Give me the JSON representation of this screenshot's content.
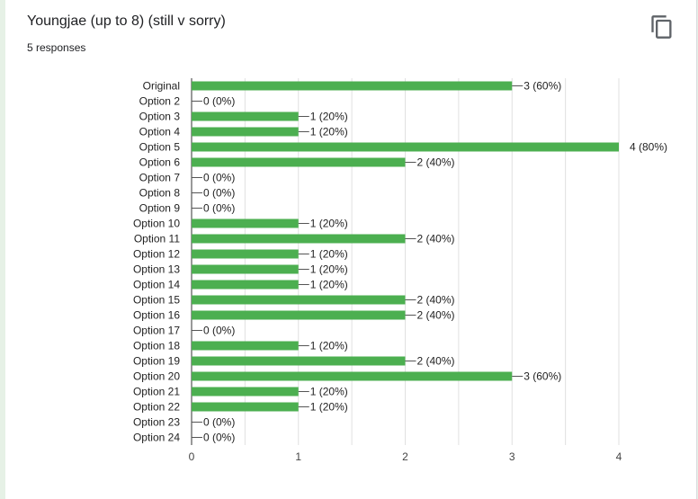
{
  "question": {
    "title": "Youngjae (up to 8) (still v sorry)",
    "responses": "5 responses"
  },
  "icons": {
    "copy": "copy-icon"
  },
  "colors": {
    "bar": "#4caf50",
    "grid": "#e0e0e0",
    "axis": "#333333"
  },
  "chart_data": {
    "type": "bar",
    "orientation": "horizontal",
    "categories": [
      "Original",
      "Option 2",
      "Option 3",
      "Option 4",
      "Option 5",
      "Option 6",
      "Option 7",
      "Option 8",
      "Option 9",
      "Option 10",
      "Option 11",
      "Option 12",
      "Option 13",
      "Option 14",
      "Option 15",
      "Option 16",
      "Option 17",
      "Option 18",
      "Option 19",
      "Option 20",
      "Option 21",
      "Option 22",
      "Option 23",
      "Option 24"
    ],
    "values": [
      3,
      0,
      1,
      1,
      4,
      2,
      0,
      0,
      0,
      1,
      2,
      1,
      1,
      1,
      2,
      2,
      0,
      1,
      2,
      3,
      1,
      1,
      0,
      0
    ],
    "value_labels": [
      "3 (60%)",
      "0 (0%)",
      "1 (20%)",
      "1 (20%)",
      "4 (80%)",
      "2 (40%)",
      "0 (0%)",
      "0 (0%)",
      "0 (0%)",
      "1 (20%)",
      "2 (40%)",
      "1 (20%)",
      "1 (20%)",
      "1 (20%)",
      "2 (40%)",
      "2 (40%)",
      "0 (0%)",
      "1 (20%)",
      "2 (40%)",
      "3 (60%)",
      "1 (20%)",
      "1 (20%)",
      "0 (0%)",
      "0 (0%)"
    ],
    "xticks": [
      "0",
      "1",
      "2",
      "3",
      "4"
    ],
    "xlim": [
      0,
      4
    ],
    "grid": true,
    "legend": "none"
  }
}
